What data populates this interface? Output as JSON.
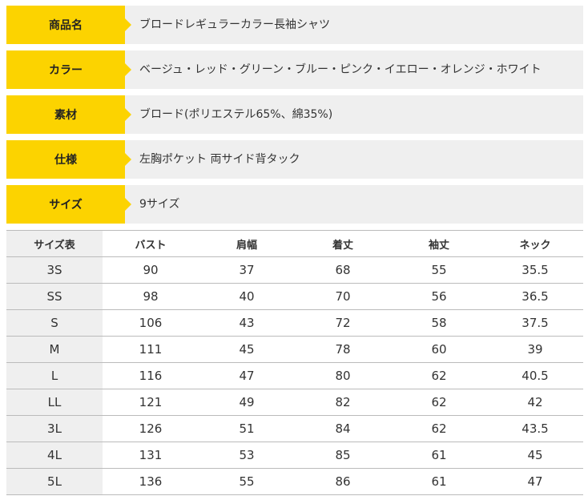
{
  "specs": [
    {
      "label": "商品名",
      "value": "ブロードレギュラーカラー長袖シャツ"
    },
    {
      "label": "カラー",
      "value": "ベージュ・レッド・グリーン・ブルー・ピンク・イエロー・オレンジ・ホワイト"
    },
    {
      "label": "素材",
      "value": "ブロード(ポリエステル65%、綿35%)"
    },
    {
      "label": "仕様",
      "value": "左胸ポケット 両サイド背タック"
    },
    {
      "label": "サイズ",
      "value": "9サイズ"
    }
  ],
  "size_table": {
    "headers": [
      "サイズ表",
      "バスト",
      "肩幅",
      "着丈",
      "袖丈",
      "ネック"
    ],
    "rows": [
      [
        "3S",
        "90",
        "37",
        "68",
        "55",
        "35.5"
      ],
      [
        "SS",
        "98",
        "40",
        "70",
        "56",
        "36.5"
      ],
      [
        "S",
        "106",
        "43",
        "72",
        "58",
        "37.5"
      ],
      [
        "M",
        "111",
        "45",
        "78",
        "60",
        "39"
      ],
      [
        "L",
        "116",
        "47",
        "80",
        "62",
        "40.5"
      ],
      [
        "LL",
        "121",
        "49",
        "82",
        "62",
        "42"
      ],
      [
        "3L",
        "126",
        "51",
        "84",
        "62",
        "43.5"
      ],
      [
        "4L",
        "131",
        "53",
        "85",
        "61",
        "45"
      ],
      [
        "5L",
        "136",
        "55",
        "86",
        "61",
        "47"
      ]
    ]
  },
  "colors": {
    "accent": "#fcd300",
    "panel": "#efefef",
    "border": "#bbbbbb"
  }
}
